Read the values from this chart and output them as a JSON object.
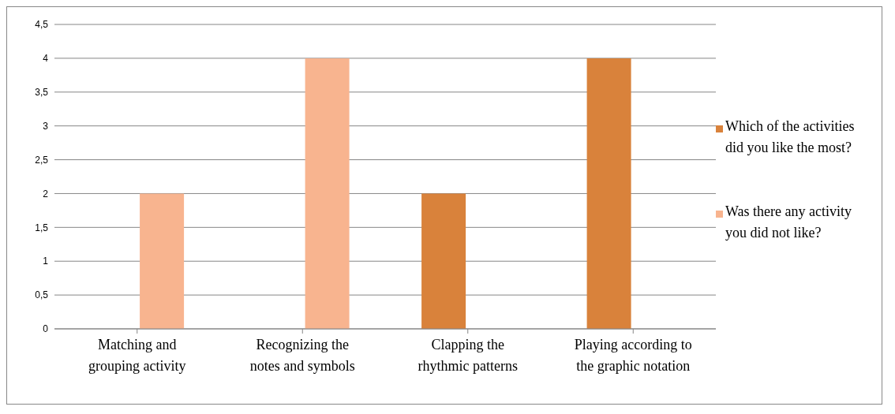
{
  "chart_data": {
    "type": "bar",
    "categories": [
      "Matching and grouping activity",
      "Recognizing the notes and symbols",
      "Clapping the rhythmic patterns",
      "Playing according to the graphic notation"
    ],
    "series": [
      {
        "name": "Which of the activities did you like the most?",
        "color": "#d9823b",
        "values": [
          null,
          null,
          2,
          4
        ]
      },
      {
        "name": "Was there any activity you did not like?",
        "color": "#f8b48f",
        "values": [
          2,
          4,
          null,
          null
        ]
      }
    ],
    "ylim": [
      0,
      4.5
    ],
    "yticks": [
      0,
      {
        "value": 0.5,
        "label": "0,5"
      },
      1,
      {
        "value": 1.5,
        "label": "1,5"
      },
      2,
      {
        "value": 2.5,
        "label": "2,5"
      },
      3,
      {
        "value": 3.5,
        "label": "3,5"
      },
      4,
      {
        "value": 4.5,
        "label": "4,5"
      }
    ],
    "grid": "y",
    "legend": "right"
  }
}
